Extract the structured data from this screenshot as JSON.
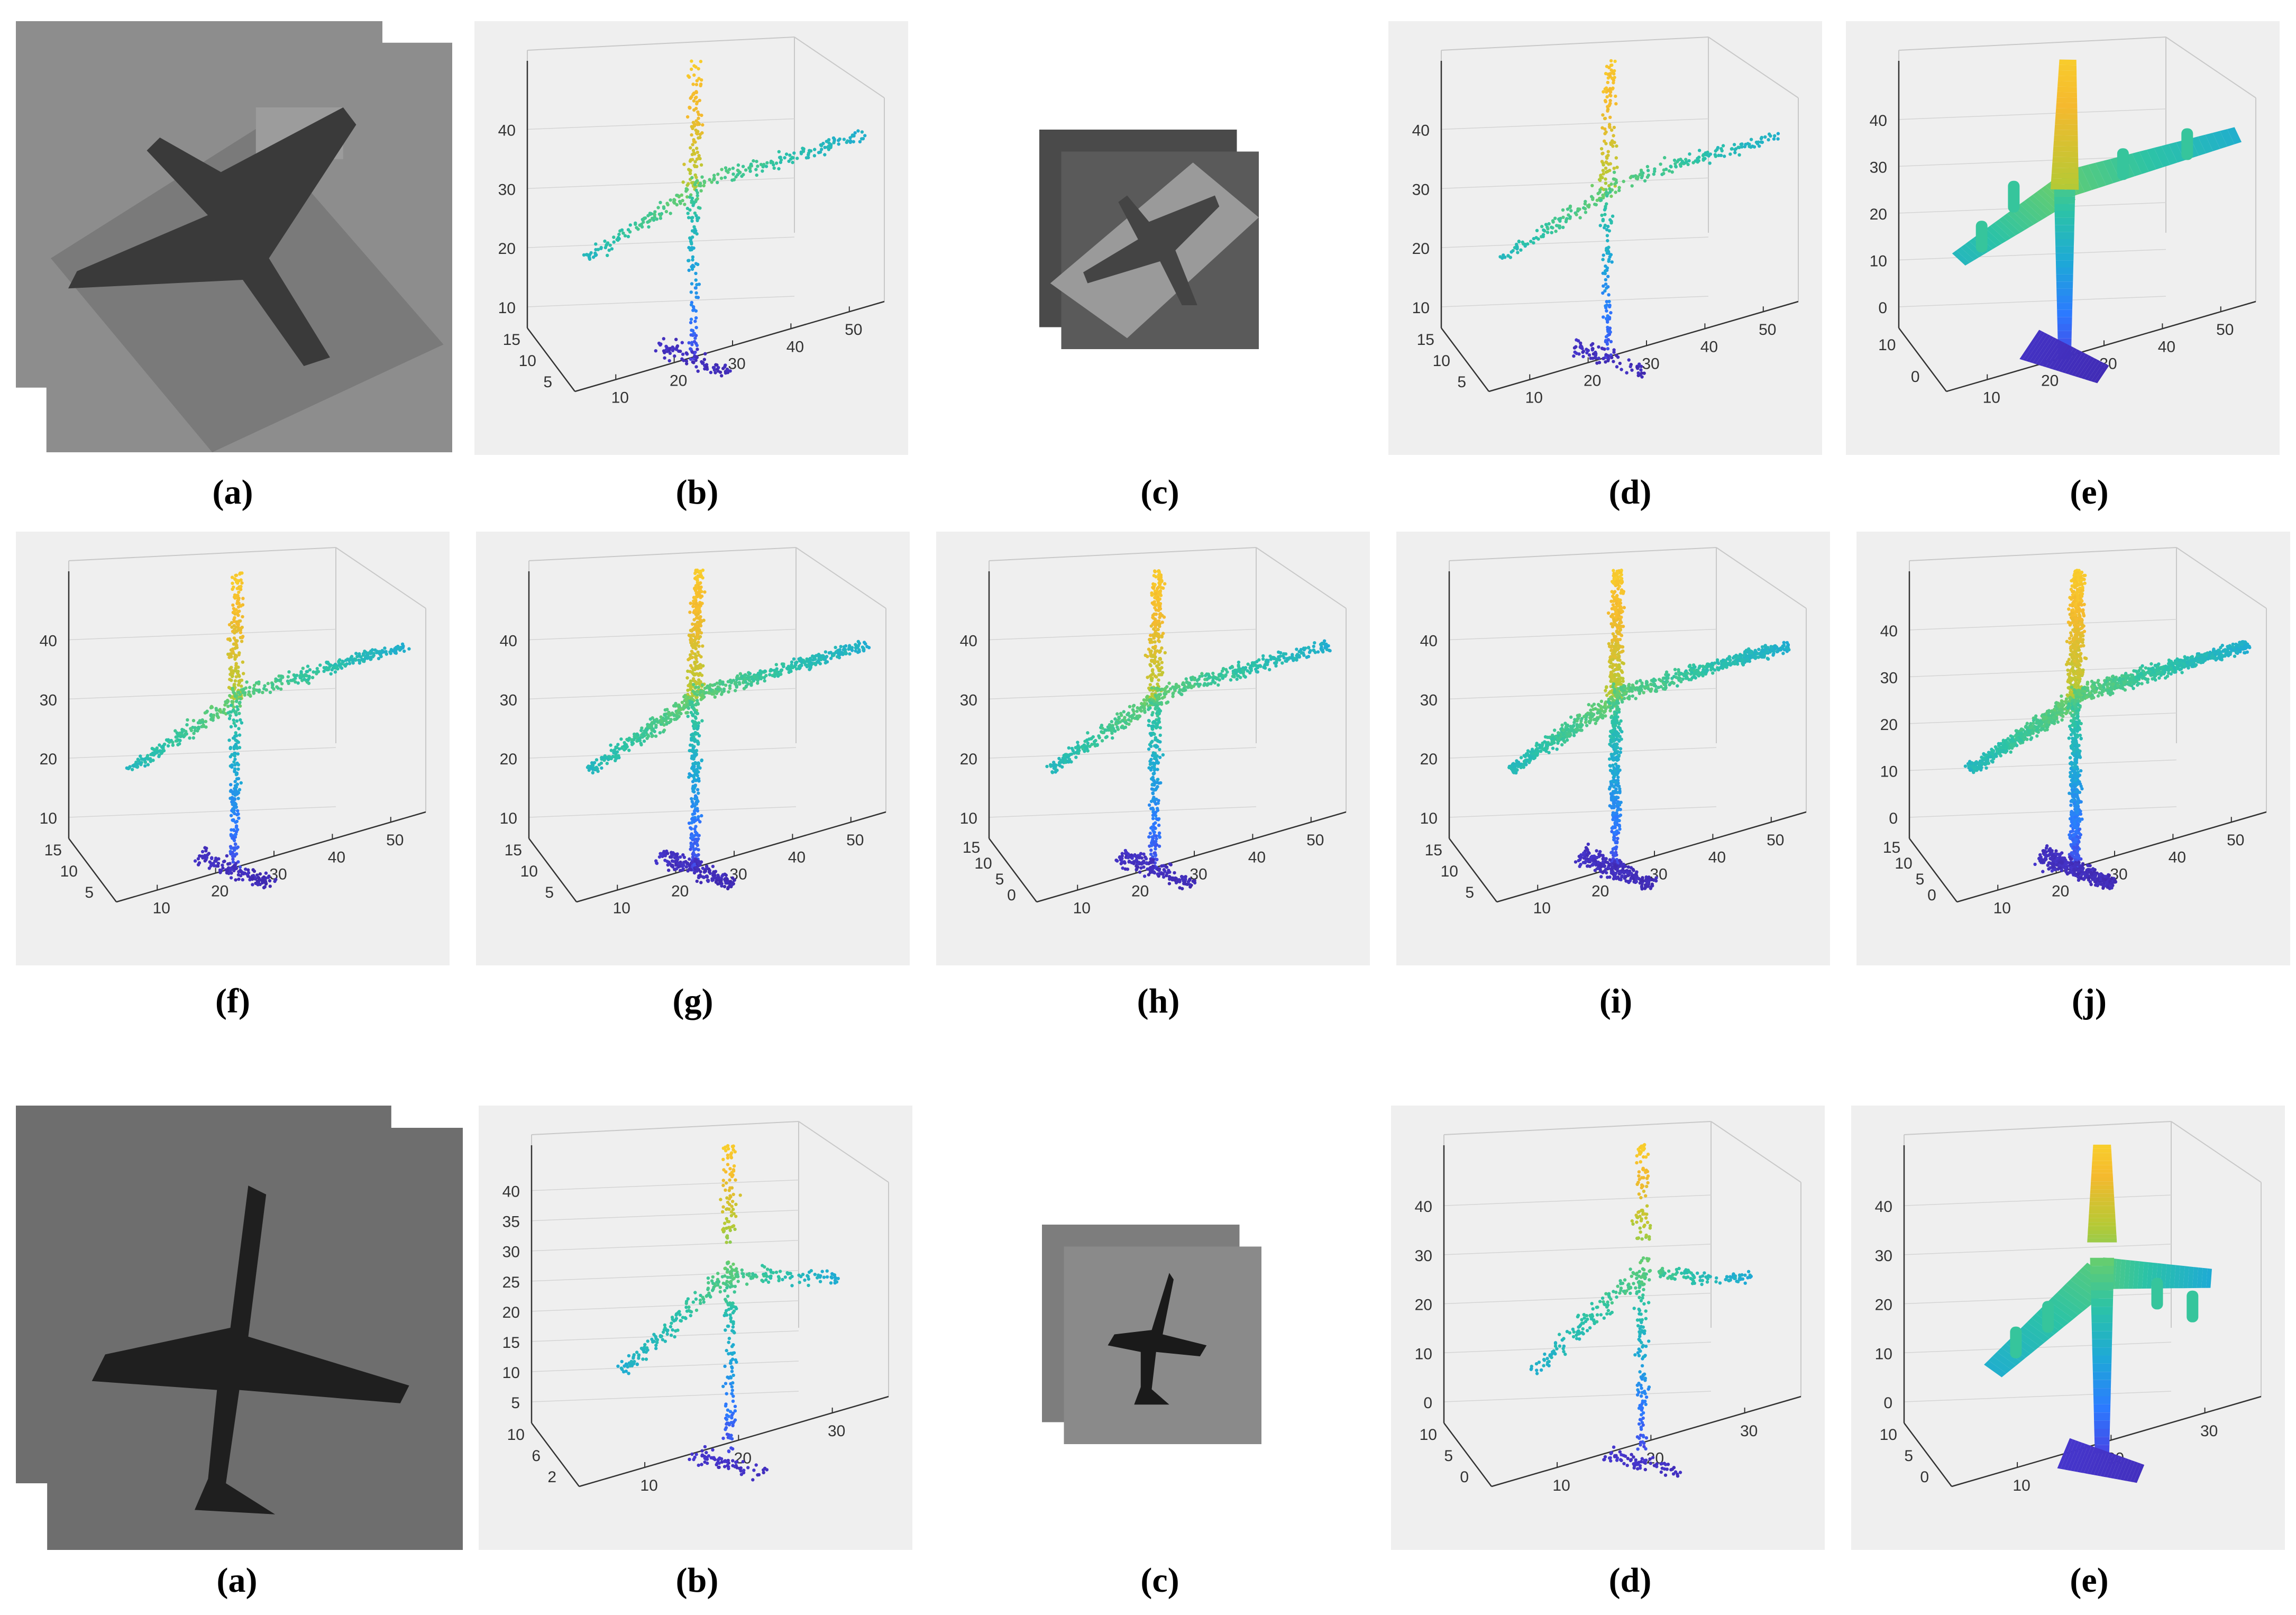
{
  "figure": {
    "rows": [
      {
        "panels": [
          {
            "id": "r1-a",
            "kind": "photo",
            "variant": "top",
            "caption": "(a)"
          },
          {
            "id": "r1-b",
            "kind": "plot",
            "shape": "top",
            "density": 520,
            "surface": false,
            "caption": "(b)",
            "z_ticks": [
              "10",
              "20",
              "30",
              "40"
            ],
            "x_ticks": [
              "10",
              "20",
              "30",
              "40",
              "50"
            ],
            "y_ticks": [
              "15",
              "10",
              "5"
            ]
          },
          {
            "id": "r1-c",
            "kind": "photo",
            "variant": "top-small",
            "caption": "(c)"
          },
          {
            "id": "r1-d",
            "kind": "plot",
            "shape": "top",
            "density": 520,
            "surface": false,
            "caption": "(d)",
            "z_ticks": [
              "10",
              "20",
              "30",
              "40"
            ],
            "x_ticks": [
              "10",
              "20",
              "30",
              "40",
              "50"
            ],
            "y_ticks": [
              "15",
              "10",
              "5"
            ]
          },
          {
            "id": "r1-e",
            "kind": "plot",
            "shape": "top",
            "density": 0,
            "surface": true,
            "caption": "(e)",
            "z_ticks": [
              "0",
              "10",
              "20",
              "30",
              "40"
            ],
            "x_ticks": [
              "10",
              "20",
              "30",
              "40",
              "50"
            ],
            "y_ticks": [
              "10",
              "0"
            ]
          }
        ]
      },
      {
        "panels": [
          {
            "id": "r2-f",
            "kind": "plot",
            "shape": "top",
            "density": 900,
            "surface": false,
            "caption": "(f)",
            "z_ticks": [
              "10",
              "20",
              "30",
              "40"
            ],
            "x_ticks": [
              "10",
              "20",
              "30",
              "40",
              "50"
            ],
            "y_ticks": [
              "15",
              "10",
              "5"
            ]
          },
          {
            "id": "r2-g",
            "kind": "plot",
            "shape": "top",
            "density": 1300,
            "surface": false,
            "caption": "(g)",
            "z_ticks": [
              "10",
              "20",
              "30",
              "40"
            ],
            "x_ticks": [
              "10",
              "20",
              "30",
              "40",
              "50"
            ],
            "y_ticks": [
              "15",
              "10",
              "5"
            ]
          },
          {
            "id": "r2-h",
            "kind": "plot",
            "shape": "top",
            "density": 1100,
            "surface": false,
            "caption": "(h)",
            "z_ticks": [
              "10",
              "20",
              "30",
              "40"
            ],
            "x_ticks": [
              "10",
              "20",
              "30",
              "40",
              "50"
            ],
            "y_ticks": [
              "15",
              "10",
              "5",
              "0"
            ]
          },
          {
            "id": "r2-i",
            "kind": "plot",
            "shape": "top",
            "density": 1700,
            "surface": false,
            "caption": "(i)",
            "z_ticks": [
              "10",
              "20",
              "30",
              "40"
            ],
            "x_ticks": [
              "10",
              "20",
              "30",
              "40",
              "50"
            ],
            "y_ticks": [
              "15",
              "10",
              "5"
            ]
          },
          {
            "id": "r2-j",
            "kind": "plot",
            "shape": "top",
            "density": 2600,
            "surface": false,
            "caption": "(j)",
            "z_ticks": [
              "0",
              "10",
              "20",
              "30",
              "40"
            ],
            "x_ticks": [
              "10",
              "20",
              "30",
              "40",
              "50"
            ],
            "y_ticks": [
              "15",
              "10",
              "5",
              "0"
            ]
          }
        ]
      },
      {
        "panels": [
          {
            "id": "r3-a",
            "kind": "photo",
            "variant": "bottom",
            "caption": "(a)"
          },
          {
            "id": "r3-b",
            "kind": "plot",
            "shape": "bottom",
            "density": 520,
            "surface": false,
            "caption": "(b)",
            "z_ticks": [
              "5",
              "10",
              "15",
              "20",
              "25",
              "30",
              "35",
              "40"
            ],
            "x_ticks": [
              "10",
              "20",
              "30"
            ],
            "y_ticks": [
              "10",
              "6",
              "2"
            ]
          },
          {
            "id": "r3-c",
            "kind": "photo",
            "variant": "bottom-small",
            "caption": "(c)"
          },
          {
            "id": "r3-d",
            "kind": "plot",
            "shape": "bottom",
            "density": 520,
            "surface": false,
            "caption": "(d)",
            "z_ticks": [
              "0",
              "10",
              "20",
              "30",
              "40"
            ],
            "x_ticks": [
              "10",
              "20",
              "30"
            ],
            "y_ticks": [
              "10",
              "5",
              "0"
            ]
          },
          {
            "id": "r3-e",
            "kind": "plot",
            "shape": "bottom",
            "density": 0,
            "surface": true,
            "caption": "(e)",
            "z_ticks": [
              "0",
              "10",
              "20",
              "30",
              "40"
            ],
            "x_ticks": [
              "10",
              "20",
              "30"
            ],
            "y_ticks": [
              "10",
              "5",
              "0"
            ]
          }
        ]
      }
    ],
    "colormap": [
      "#3e26a8",
      "#4a3fe1",
      "#2c7aff",
      "#1ea9d7",
      "#2cc3a6",
      "#6cce6a",
      "#b8c934",
      "#f5b92e",
      "#fad82b"
    ]
  }
}
